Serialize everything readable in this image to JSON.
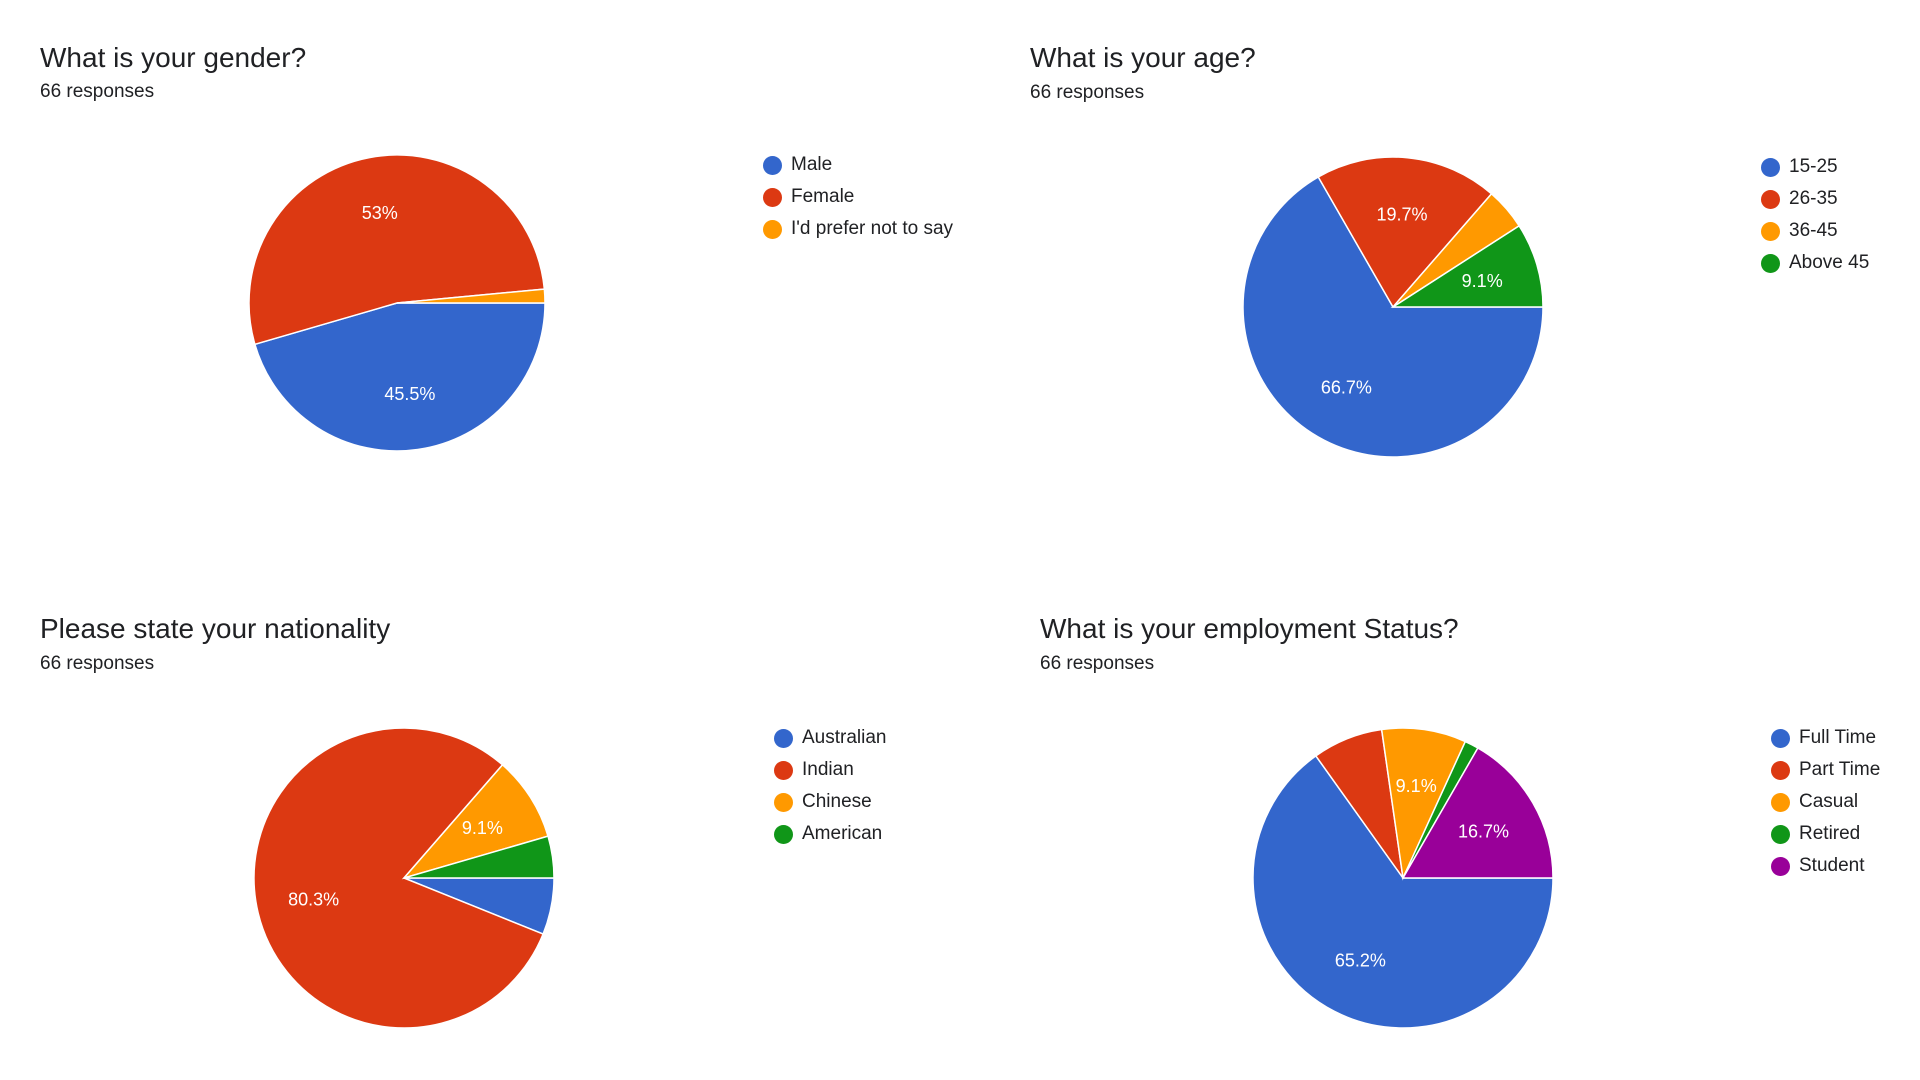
{
  "chart_data": [
    {
      "type": "pie",
      "title": "What is your gender?",
      "subtitle": "66 responses",
      "categories": [
        "Male",
        "Female",
        "I'd prefer not to say"
      ],
      "values": [
        45.5,
        53.0,
        1.5
      ],
      "data_labels": [
        "45.5%",
        "53%",
        ""
      ],
      "colors": [
        "#3366cc",
        "#dc3912",
        "#ff9900"
      ],
      "legend": "right"
    },
    {
      "type": "pie",
      "title": "What is your age?",
      "subtitle": "66 responses",
      "categories": [
        "15-25",
        "26-35",
        "36-45",
        "Above 45"
      ],
      "values": [
        66.7,
        19.7,
        4.5,
        9.1
      ],
      "data_labels": [
        "66.7%",
        "19.7%",
        "",
        "9.1%"
      ],
      "colors": [
        "#3366cc",
        "#dc3912",
        "#ff9900",
        "#109618"
      ],
      "legend": "right"
    },
    {
      "type": "pie",
      "title": "Please state your nationality",
      "subtitle": "66 responses",
      "categories": [
        "Australian",
        "Indian",
        "Chinese",
        "American"
      ],
      "values": [
        6.1,
        80.3,
        9.1,
        4.5
      ],
      "data_labels": [
        "",
        "80.3%",
        "9.1%",
        ""
      ],
      "colors": [
        "#3366cc",
        "#dc3912",
        "#ff9900",
        "#109618"
      ],
      "legend": "right"
    },
    {
      "type": "pie",
      "title": "What is your employment Status?",
      "subtitle": "66 responses",
      "categories": [
        "Full Time",
        "Part Time",
        "Casual",
        "Retired",
        "Student"
      ],
      "values": [
        65.2,
        7.6,
        9.1,
        1.5,
        16.7
      ],
      "data_labels": [
        "65.2%",
        "",
        "9.1%",
        "",
        "16.7%"
      ],
      "colors": [
        "#3366cc",
        "#dc3912",
        "#ff9900",
        "#109618",
        "#990099"
      ],
      "legend": "right"
    }
  ]
}
